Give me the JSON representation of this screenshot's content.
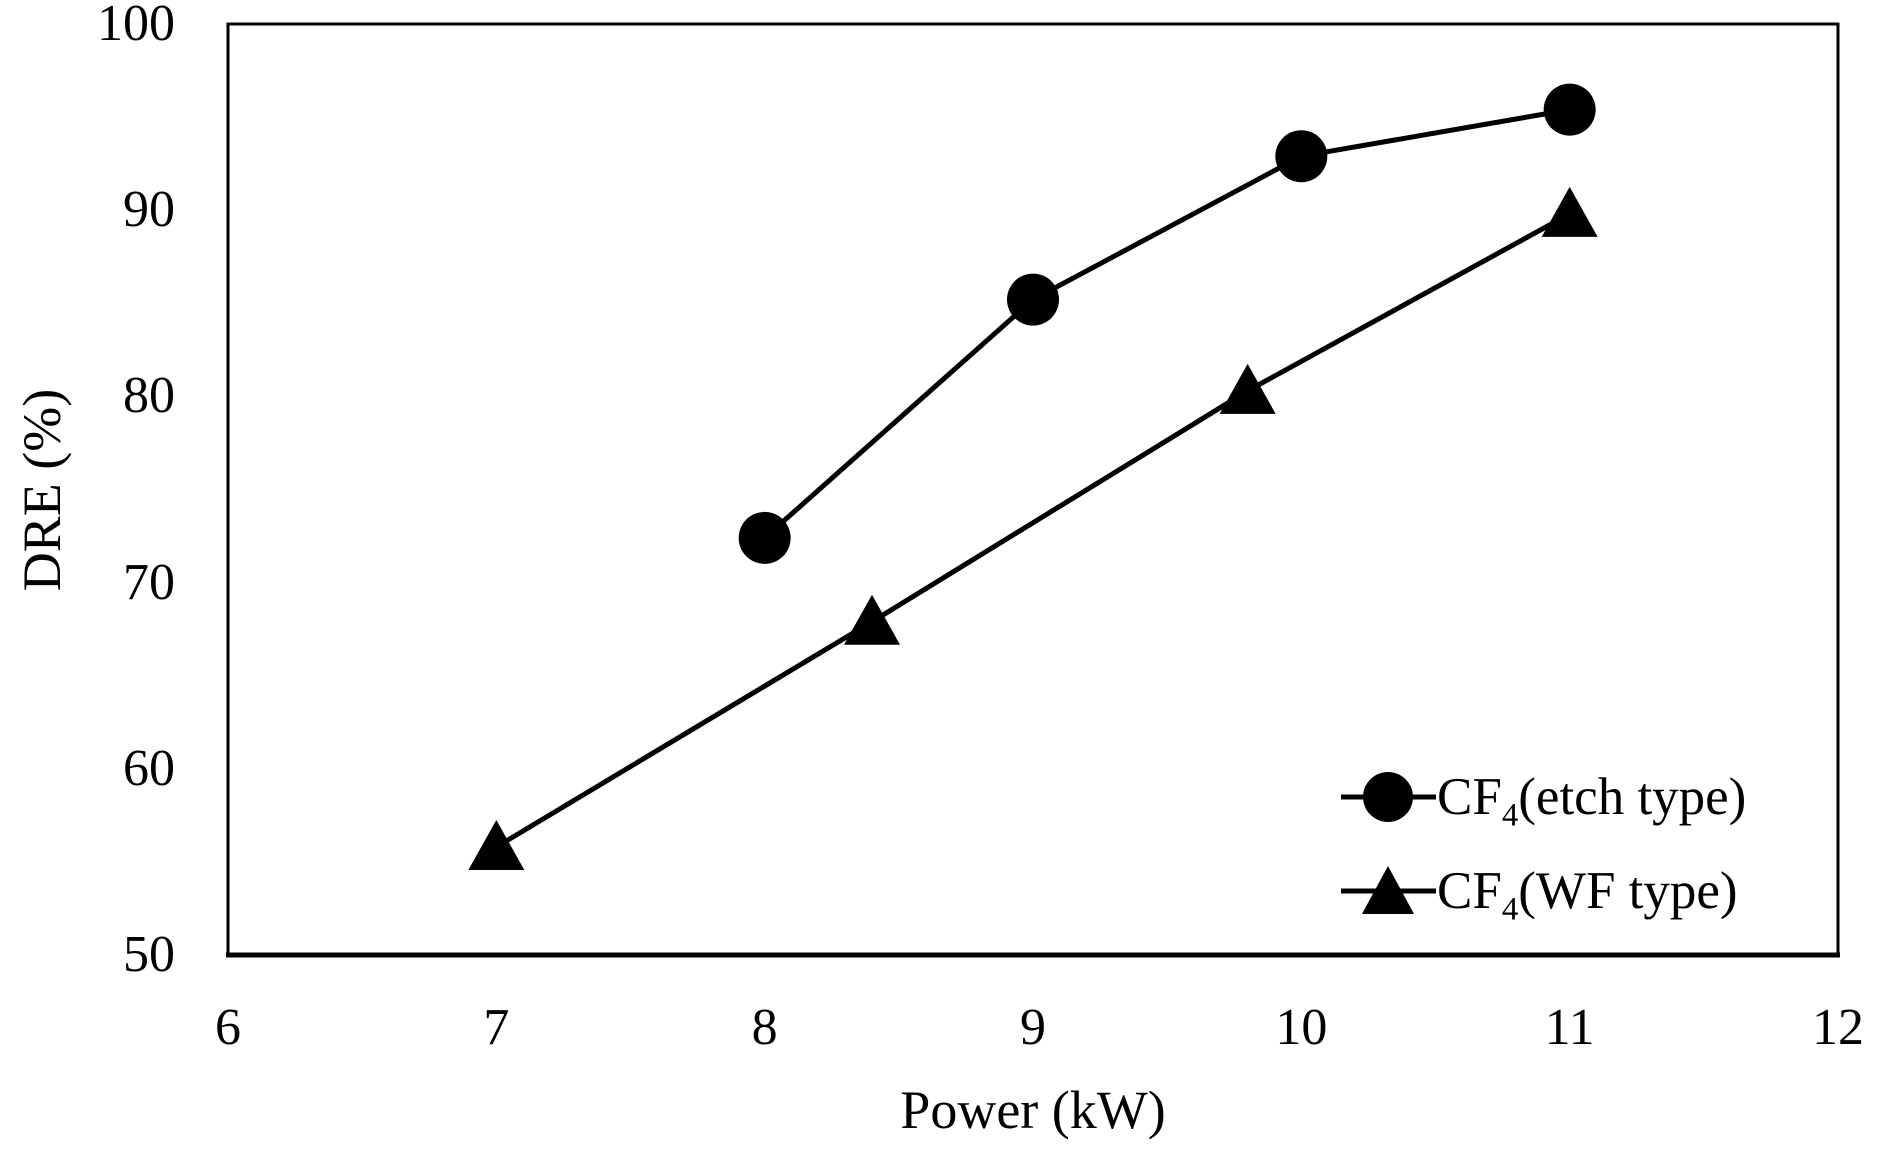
{
  "chart_data": {
    "type": "line",
    "title": "",
    "xlabel": "Power (kW)",
    "ylabel": "DRE (%)",
    "xlim": [
      6,
      12
    ],
    "ylim": [
      50,
      100
    ],
    "xticks": [
      6,
      7,
      8,
      9,
      10,
      11,
      12
    ],
    "yticks": [
      100,
      90,
      80,
      70,
      60,
      50
    ],
    "grid": false,
    "plot_border": true,
    "line_color": "#000000",
    "background_color": "#ffffff",
    "series": [
      {
        "name": "CF4(etch type)",
        "marker": "circle",
        "color": "#000000",
        "points": [
          [
            8,
            72.4
          ],
          [
            9,
            85.2
          ],
          [
            10,
            92.9
          ],
          [
            11,
            95.4
          ]
        ]
      },
      {
        "name": "CF4(WF type)",
        "marker": "triangle",
        "color": "#000000",
        "points": [
          [
            7,
            55.8
          ],
          [
            8.4,
            67.9
          ],
          [
            9.8,
            80.3
          ],
          [
            11,
            89.8
          ]
        ]
      }
    ],
    "legend": {
      "position": "inside-bottom-right",
      "entries": [
        {
          "base": "CF",
          "sub": "4",
          "rest": "(etch type)",
          "marker": "circle"
        },
        {
          "base": "CF",
          "sub": "4",
          "rest": "(WF type)",
          "marker": "triangle"
        }
      ]
    }
  }
}
